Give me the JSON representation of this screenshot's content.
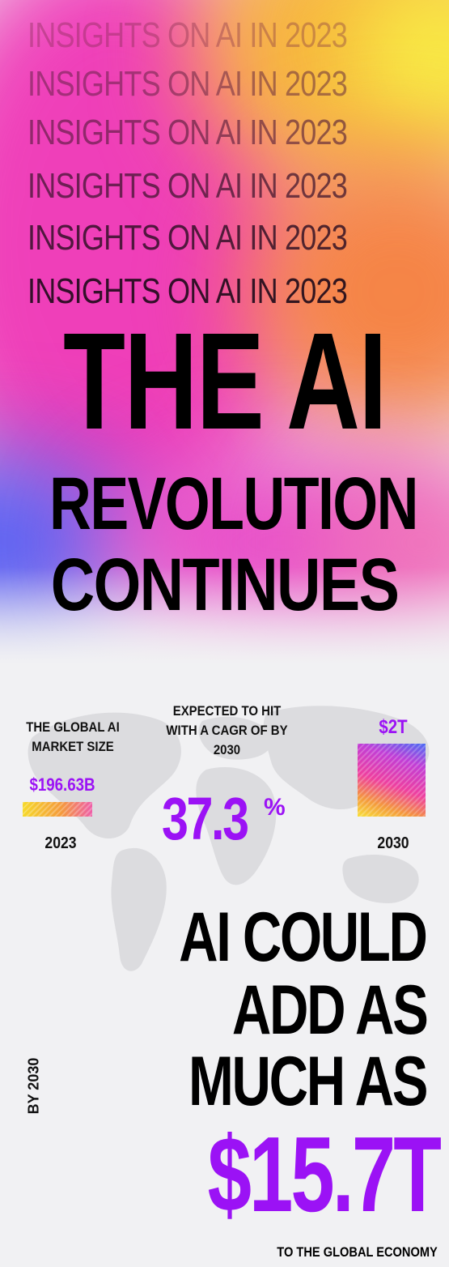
{
  "hero": {
    "repeat_lines": [
      "INSIGHTS ON AI IN 2023",
      "INSIGHTS ON AI IN 2023",
      "INSIGHTS ON AI IN 2023",
      "INSIGHTS ON AI IN 2023",
      "INSIGHTS ON AI IN 2023",
      "INSIGHTS ON AI IN 2023"
    ],
    "headline_1": "THE AI",
    "headline_2": "REVOLUTION",
    "headline_3": "CONTINUES"
  },
  "stats": {
    "market_size_label": "THE GLOBAL AI MARKET SIZE",
    "market_size_value": "$196.63B",
    "market_size_year": "2023",
    "cagr_label": "EXPECTED TO HIT WITH A CAGR OF BY 2030",
    "cagr_value": "37.3",
    "cagr_unit": "%",
    "future_value": "$2T",
    "future_year": "2030"
  },
  "economy": {
    "side_label": "BY 2030",
    "line_1": "AI COULD",
    "line_2": "ADD AS",
    "line_3": "MUCH AS",
    "value": "$15.7T",
    "footer": "TO THE GLOBAL ECONOMY"
  },
  "colors": {
    "accent": "#9b12f5",
    "pink": "#ee3fb5",
    "orange": "#f7953b",
    "yellow": "#f9e84a",
    "blue": "#5a5cf0"
  }
}
